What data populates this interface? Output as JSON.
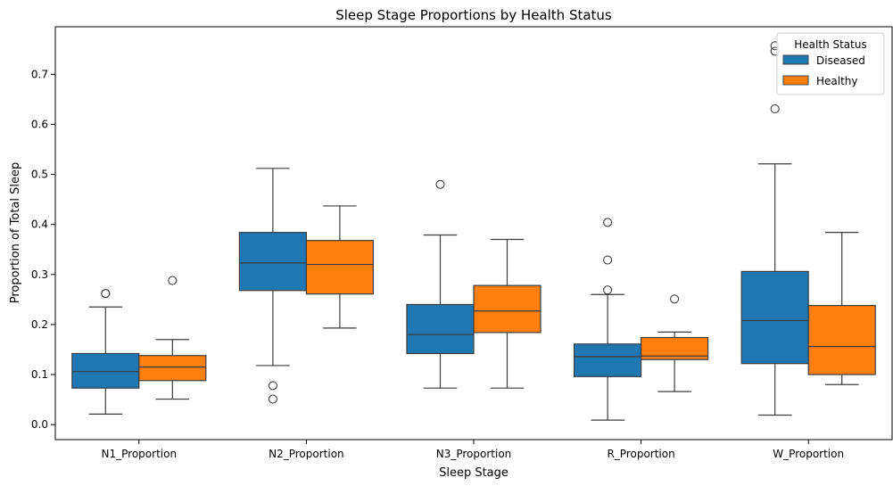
{
  "chart_data": {
    "type": "box",
    "title": "Sleep Stage Proportions by Health Status",
    "xlabel": "Sleep Stage",
    "ylabel": "Proportion of Total Sleep",
    "ylim": [
      -0.03,
      0.795
    ],
    "yticks": [
      0.0,
      0.1,
      0.2,
      0.3,
      0.4,
      0.5,
      0.6,
      0.7
    ],
    "ytick_labels": [
      "0.0",
      "0.1",
      "0.2",
      "0.3",
      "0.4",
      "0.5",
      "0.6",
      "0.7"
    ],
    "categories": [
      "N1_Proportion",
      "N2_Proportion",
      "N3_Proportion",
      "R_Proportion",
      "W_Proportion"
    ],
    "grid": false,
    "legend": {
      "title": "Health Status",
      "placement": "top-right",
      "entries": [
        "Diseased",
        "Healthy"
      ]
    },
    "series": [
      {
        "name": "Diseased",
        "color": "#1f77b4",
        "boxes": [
          {
            "whisker_low": 0.021,
            "q1": 0.073,
            "median": 0.106,
            "q3": 0.142,
            "whisker_high": 0.235,
            "outliers": [
              0.262,
              0.262
            ]
          },
          {
            "whisker_low": 0.118,
            "q1": 0.268,
            "median": 0.323,
            "q3": 0.384,
            "whisker_high": 0.512,
            "outliers": [
              0.078,
              0.051
            ]
          },
          {
            "whisker_low": 0.073,
            "q1": 0.142,
            "median": 0.18,
            "q3": 0.24,
            "whisker_high": 0.379,
            "outliers": [
              0.48
            ]
          },
          {
            "whisker_low": 0.009,
            "q1": 0.096,
            "median": 0.136,
            "q3": 0.161,
            "whisker_high": 0.26,
            "outliers": [
              0.269,
              0.329,
              0.404
            ]
          },
          {
            "whisker_low": 0.019,
            "q1": 0.122,
            "median": 0.208,
            "q3": 0.306,
            "whisker_high": 0.521,
            "outliers": [
              0.631,
              0.746,
              0.757
            ]
          }
        ]
      },
      {
        "name": "Healthy",
        "color": "#ff7f0e",
        "boxes": [
          {
            "whisker_low": 0.051,
            "q1": 0.088,
            "median": 0.115,
            "q3": 0.138,
            "whisker_high": 0.17,
            "outliers": [
              0.288
            ]
          },
          {
            "whisker_low": 0.193,
            "q1": 0.261,
            "median": 0.32,
            "q3": 0.368,
            "whisker_high": 0.437,
            "outliers": []
          },
          {
            "whisker_low": 0.073,
            "q1": 0.184,
            "median": 0.227,
            "q3": 0.278,
            "whisker_high": 0.37,
            "outliers": []
          },
          {
            "whisker_low": 0.066,
            "q1": 0.13,
            "median": 0.137,
            "q3": 0.174,
            "whisker_high": 0.185,
            "outliers": [
              0.251
            ]
          },
          {
            "whisker_low": 0.08,
            "q1": 0.1,
            "median": 0.156,
            "q3": 0.238,
            "whisker_high": 0.384,
            "outliers": []
          }
        ]
      }
    ]
  }
}
